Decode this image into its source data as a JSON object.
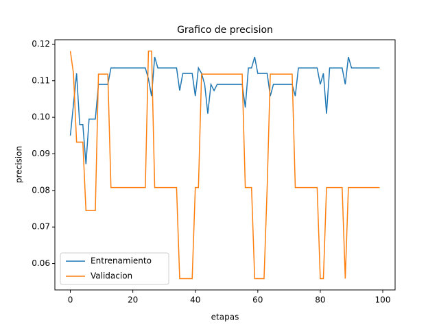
{
  "chart_data": {
    "type": "line",
    "title": "Grafico de precision",
    "x_label": "etapas",
    "y_label": "precision",
    "x": [
      0,
      1,
      2,
      3,
      4,
      5,
      6,
      7,
      8,
      9,
      10,
      11,
      12,
      13,
      14,
      15,
      16,
      17,
      18,
      19,
      20,
      21,
      22,
      23,
      24,
      25,
      26,
      27,
      28,
      29,
      30,
      31,
      32,
      33,
      34,
      35,
      36,
      37,
      38,
      39,
      40,
      41,
      42,
      43,
      44,
      45,
      46,
      47,
      48,
      49,
      50,
      51,
      52,
      53,
      54,
      55,
      56,
      57,
      58,
      59,
      60,
      61,
      62,
      63,
      64,
      65,
      66,
      67,
      68,
      69,
      70,
      71,
      72,
      73,
      74,
      75,
      76,
      77,
      78,
      79,
      80,
      81,
      82,
      83,
      84,
      85,
      86,
      87,
      88,
      89,
      90,
      91,
      92,
      93,
      94,
      95,
      96,
      97,
      98,
      99
    ],
    "series": [
      {
        "name": "Entrenamiento",
        "color": "#1f77b4",
        "values": [
          0.095,
          0.1035,
          0.112,
          0.098,
          0.098,
          0.0872,
          0.0995,
          0.0995,
          0.0995,
          0.109,
          0.109,
          0.109,
          0.109,
          0.1135,
          0.1135,
          0.1135,
          0.1135,
          0.1135,
          0.1135,
          0.1135,
          0.1135,
          0.1135,
          0.1135,
          0.1135,
          0.1135,
          0.1105,
          0.1058,
          0.1165,
          0.1135,
          0.1135,
          0.1135,
          0.1135,
          0.1135,
          0.1135,
          0.1135,
          0.1073,
          0.112,
          0.112,
          0.112,
          0.112,
          0.1058,
          0.1135,
          0.112,
          0.109,
          0.101,
          0.109,
          0.1073,
          0.109,
          0.109,
          0.109,
          0.109,
          0.109,
          0.109,
          0.109,
          0.109,
          0.109,
          0.1027,
          0.1135,
          0.1135,
          0.1165,
          0.112,
          0.112,
          0.112,
          0.112,
          0.1058,
          0.109,
          0.109,
          0.109,
          0.109,
          0.109,
          0.109,
          0.109,
          0.1058,
          0.1135,
          0.1135,
          0.1135,
          0.1135,
          0.1135,
          0.1135,
          0.1135,
          0.109,
          0.112,
          0.101,
          0.1135,
          0.1135,
          0.1135,
          0.1135,
          0.1135,
          0.109,
          0.1165,
          0.1135,
          0.1135,
          0.1135,
          0.1135,
          0.1135,
          0.1135,
          0.1135,
          0.1135,
          0.1135,
          0.1135
        ]
      },
      {
        "name": "Validacion",
        "color": "#ff7f0e",
        "values": [
          0.1181,
          0.112,
          0.0932,
          0.0932,
          0.0932,
          0.0745,
          0.0745,
          0.0745,
          0.0745,
          0.1118,
          0.1118,
          0.1118,
          0.1118,
          0.0808,
          0.0808,
          0.0808,
          0.0808,
          0.0808,
          0.0808,
          0.0808,
          0.0808,
          0.0808,
          0.0808,
          0.0808,
          0.0808,
          0.1181,
          0.1181,
          0.0808,
          0.0808,
          0.0808,
          0.0808,
          0.0808,
          0.0808,
          0.0808,
          0.0808,
          0.0559,
          0.0559,
          0.0559,
          0.0559,
          0.0559,
          0.0808,
          0.0808,
          0.1118,
          0.1118,
          0.1118,
          0.1118,
          0.1118,
          0.1118,
          0.1118,
          0.1118,
          0.1118,
          0.1118,
          0.1118,
          0.1118,
          0.1118,
          0.1118,
          0.0808,
          0.0808,
          0.0808,
          0.0559,
          0.0559,
          0.0559,
          0.0559,
          0.0808,
          0.1118,
          0.1118,
          0.1118,
          0.1118,
          0.1118,
          0.1118,
          0.1118,
          0.1118,
          0.0808,
          0.0808,
          0.0808,
          0.0808,
          0.0808,
          0.0808,
          0.0808,
          0.0808,
          0.0559,
          0.0559,
          0.0808,
          0.0808,
          0.0808,
          0.0808,
          0.0808,
          0.0808,
          0.0559,
          0.0808,
          0.0808,
          0.0808,
          0.0808,
          0.0808,
          0.0808,
          0.0808,
          0.0808,
          0.0808,
          0.0808,
          0.0808
        ]
      }
    ],
    "xlim": [
      -4.95,
      103.95
    ],
    "xticks": [
      0,
      20,
      40,
      60,
      80,
      100
    ],
    "ylim": [
      0.0528,
      0.1212
    ],
    "yticks": [
      0.06,
      0.07,
      0.08,
      0.09,
      {
        "value": 0.1,
        "label": "0.10"
      },
      0.11,
      0.12
    ],
    "grid": false,
    "legend": "lower left"
  }
}
